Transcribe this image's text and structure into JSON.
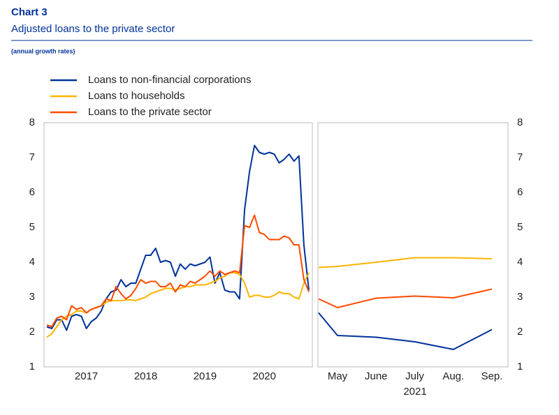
{
  "chart_data": [
    {
      "type": "line",
      "title": "Chart 3",
      "subtitle": "Adjusted loans to the private sector",
      "note": "(annual growth rates)",
      "categories": [
        null,
        null,
        null,
        null,
        null,
        null,
        null,
        null,
        "2017",
        null,
        null,
        null,
        null,
        null,
        null,
        null,
        null,
        null,
        null,
        null,
        "2018",
        null,
        null,
        null,
        null,
        null,
        null,
        null,
        null,
        null,
        null,
        null,
        "2019",
        null,
        null,
        null,
        null,
        null,
        null,
        null,
        null,
        null,
        null,
        null,
        "2020",
        null,
        null,
        null,
        null,
        null,
        null,
        null,
        null,
        null
      ],
      "ylim": [
        1,
        8
      ],
      "yticks": [
        1,
        2,
        3,
        4,
        5,
        6,
        7,
        8
      ],
      "series": [
        {
          "name": "Loans to non-financial corporations",
          "color": "#003299",
          "values": [
            2.15,
            2.1,
            2.35,
            2.35,
            2.05,
            2.45,
            2.5,
            2.45,
            2.1,
            2.3,
            2.4,
            2.6,
            2.95,
            3.15,
            3.2,
            3.5,
            3.3,
            3.4,
            3.4,
            3.8,
            4.2,
            4.2,
            4.4,
            4.0,
            4.05,
            4.0,
            3.6,
            3.95,
            3.8,
            3.95,
            3.9,
            3.95,
            4.0,
            4.15,
            3.4,
            3.7,
            3.2,
            3.15,
            3.15,
            2.95,
            5.5,
            6.6,
            7.35,
            7.15,
            7.1,
            7.15,
            7.1,
            6.85,
            6.95,
            7.1,
            6.9,
            7.05,
            4.5,
            3.2
          ]
        },
        {
          "name": "Loans to households",
          "color": "#ffb400",
          "values": [
            1.85,
            1.95,
            2.15,
            2.35,
            2.45,
            2.5,
            2.6,
            2.6,
            2.55,
            2.65,
            2.7,
            2.75,
            2.85,
            2.9,
            2.9,
            2.9,
            2.92,
            2.92,
            2.9,
            2.95,
            3.0,
            3.1,
            3.15,
            3.2,
            3.25,
            3.25,
            3.2,
            3.25,
            3.3,
            3.3,
            3.35,
            3.35,
            3.35,
            3.4,
            3.45,
            3.55,
            3.6,
            3.7,
            3.7,
            3.65,
            3.4,
            3.0,
            3.05,
            3.05,
            3.0,
            3.0,
            3.05,
            3.15,
            3.1,
            3.1,
            3.0,
            2.95,
            3.4,
            3.7
          ]
        },
        {
          "name": "Loans to the private sector",
          "color": "#ff4b00",
          "values": [
            2.2,
            2.15,
            2.4,
            2.45,
            2.35,
            2.75,
            2.65,
            2.7,
            2.55,
            2.65,
            2.7,
            2.75,
            2.95,
            2.9,
            3.3,
            3.1,
            2.95,
            3.05,
            3.25,
            3.5,
            3.4,
            3.45,
            3.45,
            3.3,
            3.3,
            3.4,
            3.15,
            3.35,
            3.3,
            3.45,
            3.4,
            3.5,
            3.6,
            3.75,
            3.6,
            3.75,
            3.65,
            3.7,
            3.75,
            3.7,
            5.05,
            5.0,
            5.35,
            4.85,
            4.8,
            4.65,
            4.65,
            4.65,
            4.75,
            4.7,
            4.5,
            4.5,
            3.5,
            3.15
          ]
        }
      ]
    },
    {
      "type": "line",
      "xlabel": "2021",
      "categories": [
        null,
        "May",
        "June",
        "July",
        "Aug.",
        "Sep."
      ],
      "ylim": [
        1,
        8
      ],
      "yticks": [
        1,
        2,
        3,
        4,
        5,
        6,
        7,
        8
      ],
      "series": [
        {
          "color": "#003299",
          "values": [
            2.55,
            1.9,
            1.85,
            1.72,
            1.5,
            2.07
          ]
        },
        {
          "color": "#ffb400",
          "values": [
            3.85,
            3.88,
            4.0,
            4.13,
            4.13,
            4.1
          ]
        },
        {
          "color": "#ff4b00",
          "values": [
            2.95,
            2.7,
            2.97,
            3.03,
            2.98,
            3.23
          ]
        }
      ]
    }
  ]
}
